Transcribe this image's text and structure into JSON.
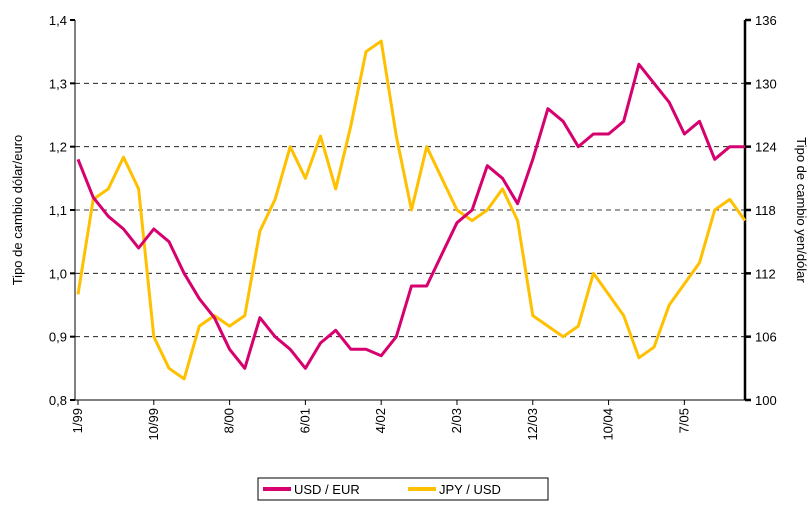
{
  "chart_data": {
    "type": "line",
    "y_label": "Tipo de cambio dólar/euro",
    "y2_label": "Tipo de cambio yen/dólar",
    "categories": [
      "1/99",
      null,
      null,
      null,
      null,
      "10/99",
      null,
      null,
      null,
      null,
      "8/00",
      null,
      null,
      null,
      null,
      "6/01",
      null,
      null,
      null,
      null,
      "4/02",
      null,
      null,
      null,
      null,
      "2/03",
      null,
      null,
      null,
      null,
      "12/03",
      null,
      null,
      null,
      null,
      "10/04",
      null,
      null,
      null,
      null,
      "7/05",
      null,
      null,
      null,
      null
    ],
    "series": [
      {
        "name": "USD / EUR",
        "color": "#d6006f",
        "values": [
          1.18,
          1.12,
          1.09,
          1.07,
          1.04,
          1.07,
          1.05,
          1.0,
          0.96,
          0.93,
          0.88,
          0.85,
          0.93,
          0.9,
          0.88,
          0.85,
          0.89,
          0.91,
          0.88,
          0.88,
          0.87,
          0.9,
          0.98,
          0.98,
          1.03,
          1.08,
          1.1,
          1.17,
          1.15,
          1.11,
          1.18,
          1.26,
          1.24,
          1.2,
          1.22,
          1.22,
          1.24,
          1.33,
          1.3,
          1.27,
          1.22,
          1.24,
          1.18,
          1.2,
          1.2
        ]
      },
      {
        "name": "JPY / USD",
        "color": "#ffc000",
        "axis": "y2",
        "values": [
          110,
          119,
          120,
          123,
          120,
          106,
          103,
          102,
          107,
          108,
          107,
          108,
          116,
          119,
          124,
          121,
          125,
          120,
          126,
          133,
          134,
          125,
          118,
          124,
          121,
          118,
          117,
          118,
          120,
          117,
          108,
          107,
          106,
          107,
          112,
          110,
          108,
          104,
          105,
          109,
          111,
          113,
          118,
          119,
          117
        ]
      }
    ],
    "ylim": [
      0.8,
      1.4
    ],
    "yticks": [
      {
        "value": 0.8,
        "label": "0,8"
      },
      {
        "value": 0.9,
        "label": "0,9"
      },
      {
        "value": 1.0,
        "label": "1,0"
      },
      {
        "value": 1.1,
        "label": "1,1"
      },
      {
        "value": 1.2,
        "label": "1,2"
      },
      {
        "value": 1.3,
        "label": "1,3"
      },
      {
        "value": 1.4,
        "label": "1,4"
      }
    ],
    "y2lim": [
      100,
      136
    ],
    "y2ticks": [
      100,
      106,
      112,
      118,
      124,
      130,
      136
    ],
    "grid": true,
    "legend": "bottom"
  }
}
